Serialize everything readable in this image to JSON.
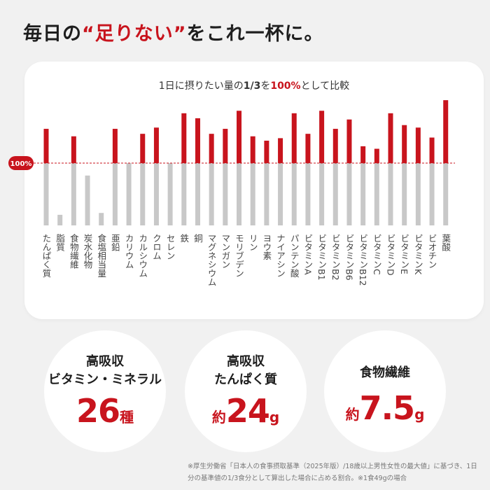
{
  "headline": {
    "prefix": "毎日の",
    "highlight": "“足りない”",
    "suffix": "をこれ一杯に。"
  },
  "chart_title": {
    "part1": "1日に摂りたい量の",
    "part2": "1/3",
    "part3": "を",
    "part4": "100%",
    "part5": "として比較"
  },
  "colors": {
    "accent": "#c8141d",
    "under": "#c8c8c8",
    "card": "#ffffff",
    "bg": "#f1f1f1"
  },
  "chart_data": {
    "type": "bar",
    "reference_label": "100%",
    "reference_value": 100,
    "categories": [
      "たんぱく質",
      "脂質",
      "食物繊維",
      "炭水化物",
      "食塩相当量",
      "亜鉛",
      "カリウム",
      "カルシウム",
      "クロム",
      "セレン",
      "鉄",
      "銅",
      "マグネシウム",
      "マンガン",
      "モリブデン",
      "リン",
      "ヨウ素",
      "ナイアシン",
      "パンテン酸",
      "ビタミンA",
      "ビタミンB1",
      "ビタミンB2",
      "ビタミンB6",
      "ビタミンB12",
      "ビタミンC",
      "ビタミンD",
      "ビタミンE",
      "ビタミンK",
      "ビオチン",
      "葉酸"
    ],
    "values": [
      155,
      17,
      143,
      80,
      20,
      155,
      100,
      147,
      157,
      100,
      180,
      172,
      147,
      155,
      184,
      143,
      136,
      140,
      180,
      147,
      184,
      155,
      170,
      127,
      123,
      180,
      161,
      157,
      141,
      201
    ],
    "ylim": [
      0,
      205
    ]
  },
  "circles": [
    {
      "lines": [
        "高吸収",
        "ビタミン・ミネラル"
      ],
      "prefix": "",
      "number": "26",
      "unit": "種"
    },
    {
      "lines": [
        "高吸収",
        "たんぱく質"
      ],
      "prefix": "約",
      "number": "24",
      "unit": "g"
    },
    {
      "lines": [
        "食物繊維"
      ],
      "prefix": "約",
      "number": "7.5",
      "unit": "g"
    }
  ],
  "note": "※厚生労働省「日本人の食事摂取基準（2025年版）/18歳以上男性女性の最大値」に基づき、1日分の基準値の1/3食分として算出した場合に占める割合。※1食49gの場合"
}
